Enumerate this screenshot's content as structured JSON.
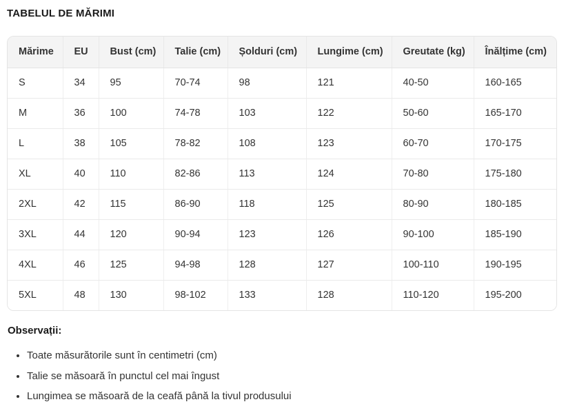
{
  "title": "TABELUL DE MĂRIMI",
  "table": {
    "columns": [
      "Mărime",
      "EU",
      "Bust (cm)",
      "Talie (cm)",
      "Șolduri (cm)",
      "Lungime (cm)",
      "Greutate (kg)",
      "Înălțime (cm)"
    ],
    "rows": [
      [
        "S",
        "34",
        "95",
        "70-74",
        "98",
        "121",
        "40-50",
        "160-165"
      ],
      [
        "M",
        "36",
        "100",
        "74-78",
        "103",
        "122",
        "50-60",
        "165-170"
      ],
      [
        "L",
        "38",
        "105",
        "78-82",
        "108",
        "123",
        "60-70",
        "170-175"
      ],
      [
        "XL",
        "40",
        "110",
        "82-86",
        "113",
        "124",
        "70-80",
        "175-180"
      ],
      [
        "2XL",
        "42",
        "115",
        "86-90",
        "118",
        "125",
        "80-90",
        "180-185"
      ],
      [
        "3XL",
        "44",
        "120",
        "90-94",
        "123",
        "126",
        "90-100",
        "185-190"
      ],
      [
        "4XL",
        "46",
        "125",
        "94-98",
        "128",
        "127",
        "100-110",
        "190-195"
      ],
      [
        "5XL",
        "48",
        "130",
        "98-102",
        "133",
        "128",
        "110-120",
        "195-200"
      ]
    ]
  },
  "notes": {
    "heading": "Observații:",
    "items": [
      "Toate măsurătorile sunt în centimetri (cm)",
      "Talie se măsoară în punctul cel mai îngust",
      "Lungimea se măsoară de la ceafă până la tivul produsului"
    ]
  },
  "colors": {
    "header_bg": "#f4f4f4",
    "border": "#e4e4e4",
    "text": "#333333"
  }
}
